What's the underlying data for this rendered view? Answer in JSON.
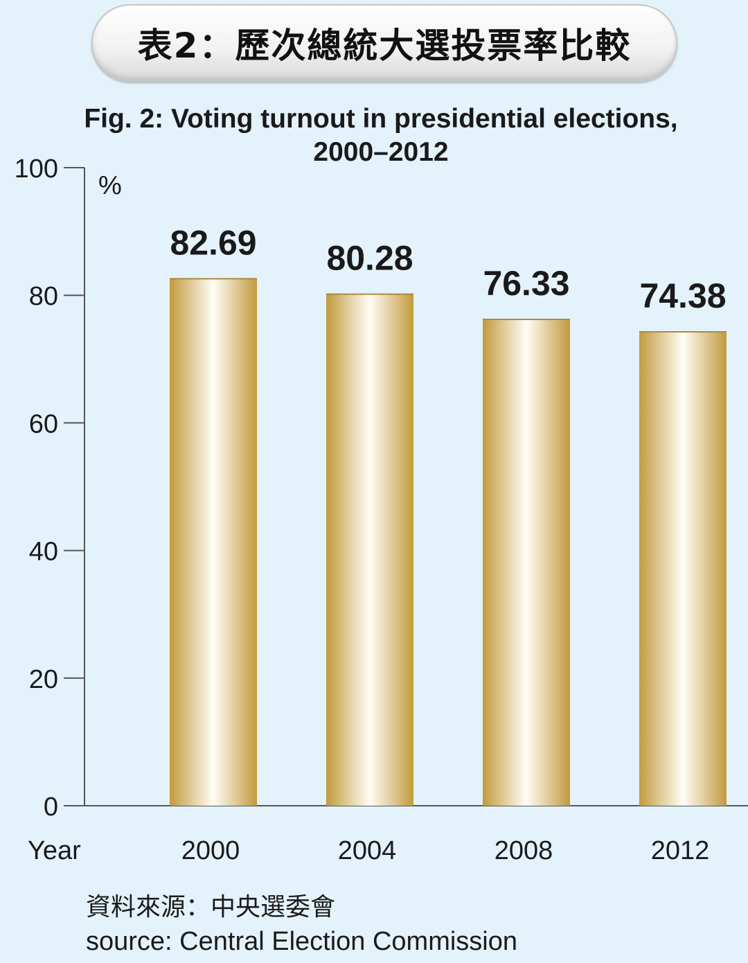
{
  "header": {
    "title_zh": "表2：歷次總統大選投票率比較",
    "subtitle_line1": "Fig. 2: Voting turnout in presidential elections,",
    "subtitle_line2": "2000–2012"
  },
  "chart_data": {
    "type": "bar",
    "categories": [
      "2000",
      "2004",
      "2008",
      "2012"
    ],
    "values": [
      82.69,
      80.28,
      76.33,
      74.38
    ],
    "data_labels": [
      "82.69",
      "80.28",
      "76.33",
      "74.38"
    ],
    "xlabel": "Year",
    "ylabel": "%",
    "ylim": [
      0,
      100
    ],
    "yticks": [
      0,
      20,
      40,
      60,
      80,
      100
    ],
    "grid": false,
    "bar_color_edge": "#c29a3e",
    "bar_color_center": "#fffdf6"
  },
  "source": {
    "zh": "資料來源：中央選委會",
    "en": "source: Central Election Commission"
  }
}
